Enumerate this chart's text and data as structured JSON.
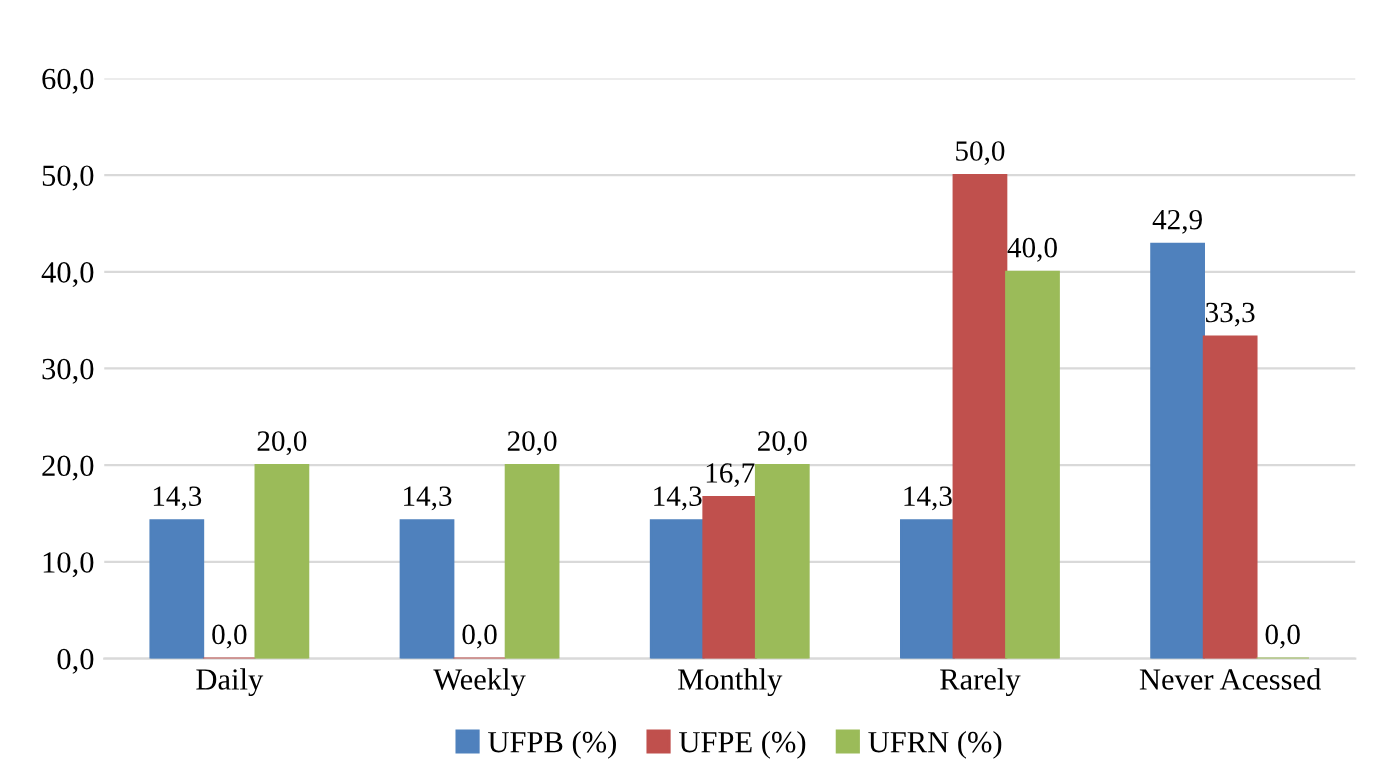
{
  "chart_data": {
    "type": "bar",
    "categories": [
      "Daily",
      "Weekly",
      "Monthly",
      "Rarely",
      "Never Acessed"
    ],
    "series": [
      {
        "name": "UFPB (%)",
        "color": "#4f81bd",
        "values": [
          14.3,
          14.3,
          14.3,
          14.3,
          42.9
        ],
        "value_labels": [
          "14,3",
          "14,3",
          "14,3",
          "14,3",
          "42,9"
        ]
      },
      {
        "name": "UFPE (%)",
        "color": "#c0504d",
        "values": [
          0.0,
          0.0,
          16.7,
          50.0,
          33.3
        ],
        "value_labels": [
          "0,0",
          "0,0",
          "16,7",
          "50,0",
          "33,3"
        ]
      },
      {
        "name": "UFRN (%)",
        "color": "#9bbb59",
        "values": [
          20.0,
          20.0,
          20.0,
          40.0,
          0.0
        ],
        "value_labels": [
          "20,0",
          "20,0",
          "20,0",
          "40,0",
          "0,0"
        ]
      }
    ],
    "ylim": [
      0,
      60
    ],
    "yticks": [
      {
        "value": 0,
        "label": "0,0"
      },
      {
        "value": 10,
        "label": "10,0"
      },
      {
        "value": 20,
        "label": "20,0"
      },
      {
        "value": 30,
        "label": "30,0"
      },
      {
        "value": 40,
        "label": "40,0"
      },
      {
        "value": 50,
        "label": "50,0"
      },
      {
        "value": 60,
        "label": "60,0"
      }
    ],
    "grid": "y",
    "legend": "bottom"
  }
}
